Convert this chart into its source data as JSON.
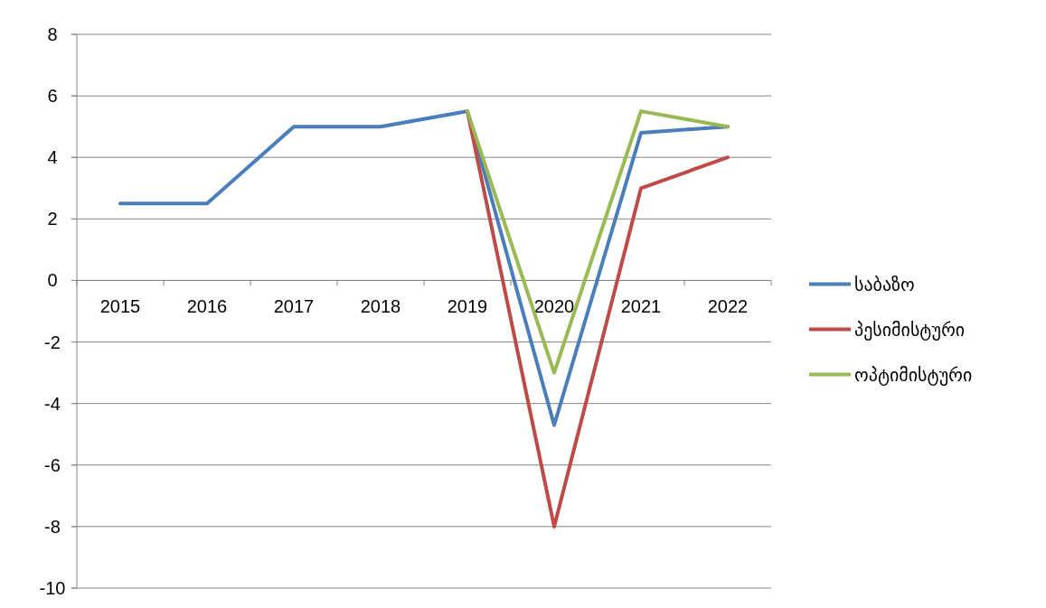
{
  "chart_data": {
    "type": "line",
    "categories": [
      "2015",
      "2016",
      "2017",
      "2018",
      "2019",
      "2020",
      "2021",
      "2022"
    ],
    "series": [
      {
        "name": "საბაზო",
        "color": "#4a7ebb",
        "values": [
          2.5,
          2.5,
          5,
          5,
          5.5,
          -4.7,
          4.8,
          5
        ]
      },
      {
        "name": "პესიმისტური",
        "color": "#be4b48",
        "values": [
          null,
          null,
          null,
          null,
          5.5,
          -8,
          3,
          4
        ]
      },
      {
        "name": "ოპტიმისტური",
        "color": "#98b954",
        "values": [
          null,
          null,
          null,
          null,
          5.5,
          -3,
          5.5,
          5
        ]
      }
    ],
    "ylim": [
      -10,
      8
    ],
    "yticks": [
      -10,
      -8,
      -6,
      -4,
      -2,
      0,
      2,
      4,
      6,
      8
    ],
    "grid": "y",
    "legend": "right",
    "line_style": "solid",
    "marker": "none"
  }
}
